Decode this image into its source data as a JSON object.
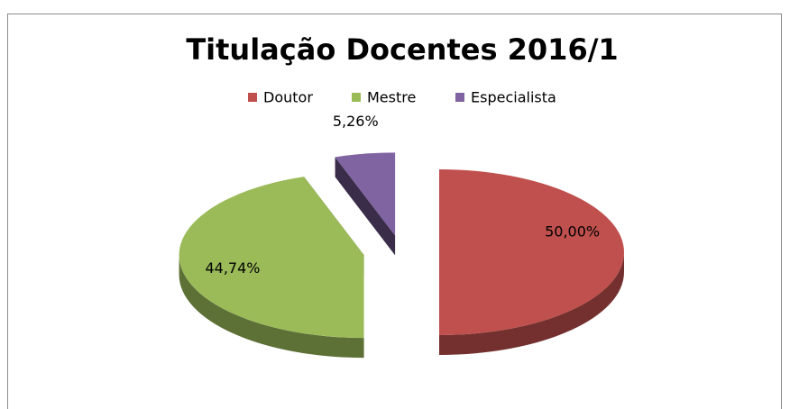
{
  "chart_data": {
    "type": "pie",
    "title": "Titulação Docentes 2016/1",
    "categories": [
      "Doutor",
      "Mestre",
      "Especialista"
    ],
    "values": [
      50.0,
      44.74,
      5.26
    ],
    "value_labels": [
      "50,00%",
      "44,74%",
      "5,26%"
    ],
    "colors": [
      "#c0504d",
      "#9bbb59",
      "#8064a2"
    ],
    "legend": "top",
    "exploded": true,
    "three_d": true
  }
}
